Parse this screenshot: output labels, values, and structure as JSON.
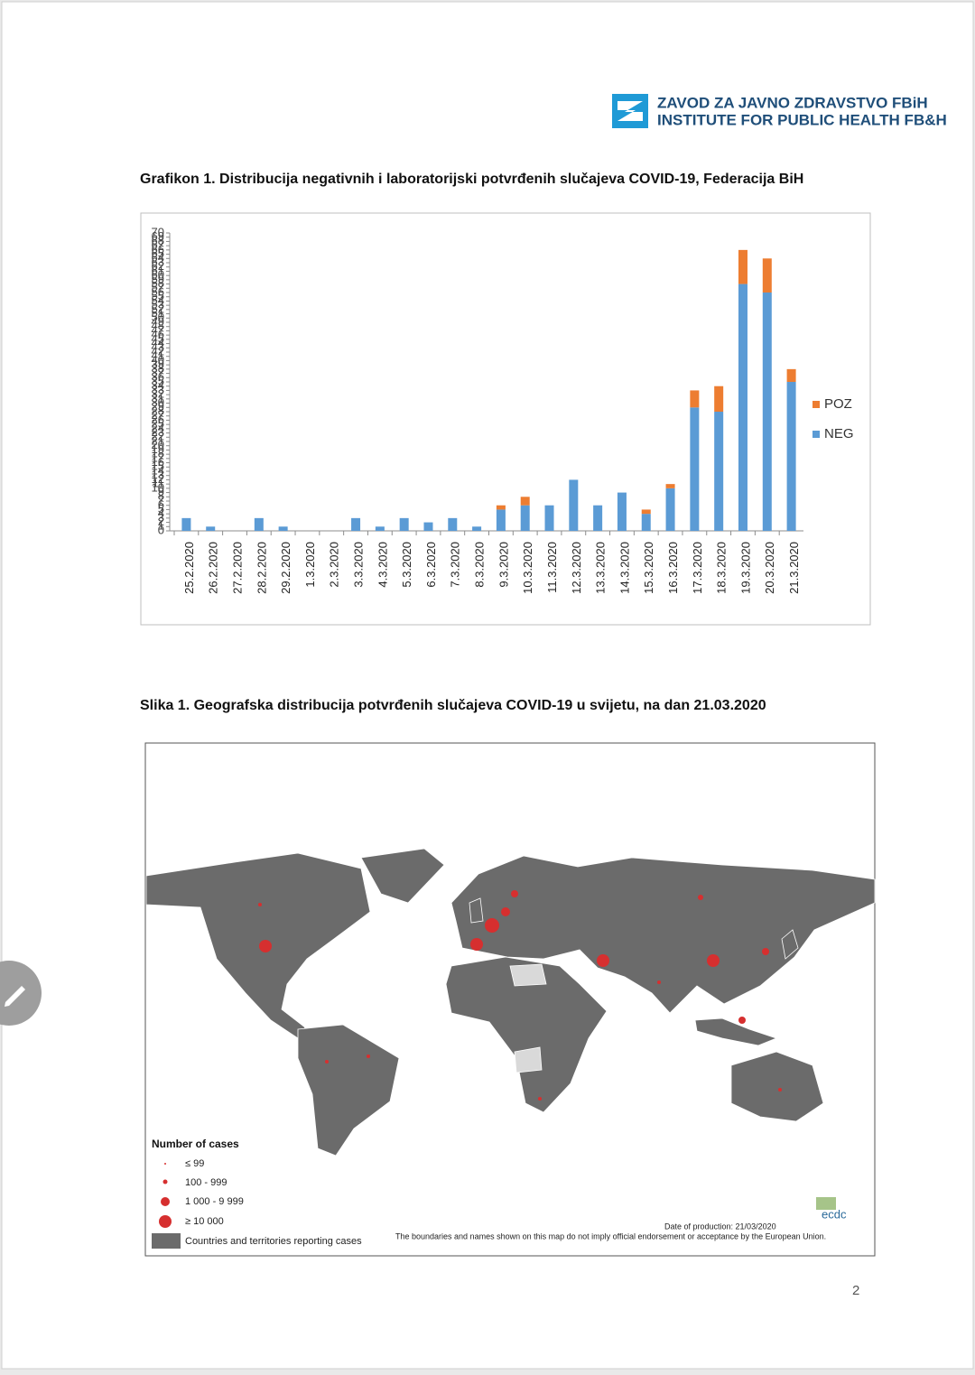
{
  "header": {
    "line1": "ZAVOD ZA JAVNO ZDRAVSTVO FBiH",
    "line2": "INSTITUTE FOR PUBLIC HEALTH FB&H"
  },
  "chart_data": {
    "type": "bar",
    "stacked": true,
    "grid": false,
    "legend": "right",
    "title": "Grafikon 1. Distribucija negativnih i laboratorijski potvrđenih slučajeva COVID-19, Federacija BiH",
    "categories": [
      "25.2.2020",
      "26.2.2020",
      "27.2.2020",
      "28.2.2020",
      "29.2.2020",
      "1.3.2020",
      "2.3.2020",
      "3.3.2020",
      "4.3.2020",
      "5.3.2020",
      "6.3.2020",
      "7.3.2020",
      "8.3.2020",
      "9.3.2020",
      "10.3.2020",
      "11.3.2020",
      "12.3.2020",
      "13.3.2020",
      "14.3.2020",
      "15.3.2020",
      "16.3.2020",
      "17.3.2020",
      "18.3.2020",
      "19.3.2020",
      "20.3.2020",
      "21.3.2020"
    ],
    "series": [
      {
        "name": "NEG",
        "color": "#5b9bd5",
        "values": [
          3,
          1,
          0,
          3,
          1,
          0,
          0,
          3,
          1,
          3,
          2,
          3,
          1,
          5,
          6,
          6,
          12,
          6,
          9,
          4,
          10,
          29,
          28,
          58,
          56,
          35
        ]
      },
      {
        "name": "POZ",
        "color": "#ed7d31",
        "values": [
          0,
          0,
          0,
          0,
          0,
          0,
          0,
          0,
          0,
          0,
          0,
          0,
          0,
          1,
          2,
          0,
          0,
          0,
          0,
          1,
          1,
          4,
          6,
          8,
          8,
          3
        ]
      }
    ],
    "ylim": [
      0,
      70
    ],
    "yticks": [
      0,
      1,
      2,
      3,
      4,
      5,
      6,
      7,
      8,
      9,
      10,
      11,
      12,
      13,
      14,
      15,
      16,
      17,
      18,
      19,
      20,
      21,
      22,
      23,
      24,
      25,
      26,
      27,
      28,
      29,
      30,
      31,
      32,
      33,
      34,
      35,
      36,
      37,
      38,
      39,
      40,
      41,
      42,
      43,
      44,
      45,
      46,
      47,
      48,
      49,
      50,
      51,
      52,
      53,
      54,
      55,
      56,
      57,
      58,
      59,
      60,
      61,
      62,
      63,
      64,
      65,
      66,
      67,
      68,
      69,
      70
    ]
  },
  "figure": {
    "caption": "Slika 1. Geografska distribucija potvrđenih slučajeva COVID-19 u svijetu, na dan 21.03.2020",
    "legend_title": "Number of cases",
    "legend_items": [
      "≤  99",
      "100 - 999",
      "1 000 - 9 999",
      "≥ 10 000",
      "Countries and territories reporting cases"
    ],
    "date": "Date of production: 21/03/2020",
    "disclaimer": "The boundaries and names shown on this map do not imply official endorsement or acceptance by the European Union.",
    "logo": "ecdc"
  },
  "page_number": "2"
}
